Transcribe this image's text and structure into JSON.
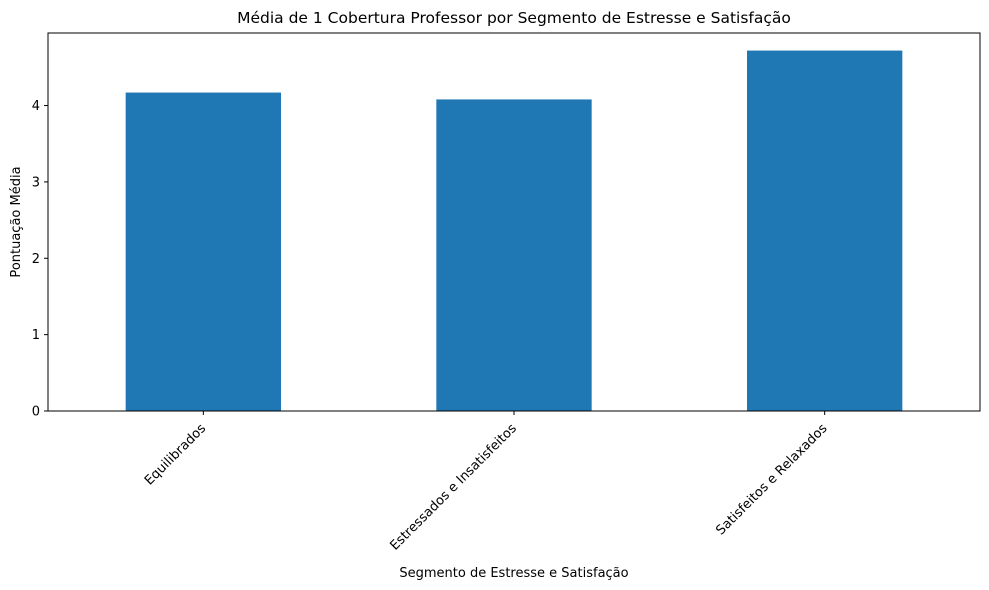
{
  "chart_data": {
    "type": "bar",
    "title": "Média de 1 Cobertura Professor por Segmento de Estresse e Satisfação",
    "xlabel": "Segmento de Estresse e Satisfação",
    "ylabel": "Pontuação Média",
    "categories": [
      "Equilibrados",
      "Estressados e Insatisfeitos",
      "Satisfeitos e Relaxados"
    ],
    "values": [
      4.17,
      4.08,
      4.72
    ],
    "ylim": [
      0,
      4.95
    ],
    "yticks": [
      "0",
      "1",
      "2",
      "3",
      "4"
    ],
    "grid": false,
    "legend": "none",
    "bar_color": "#1f77b4"
  }
}
